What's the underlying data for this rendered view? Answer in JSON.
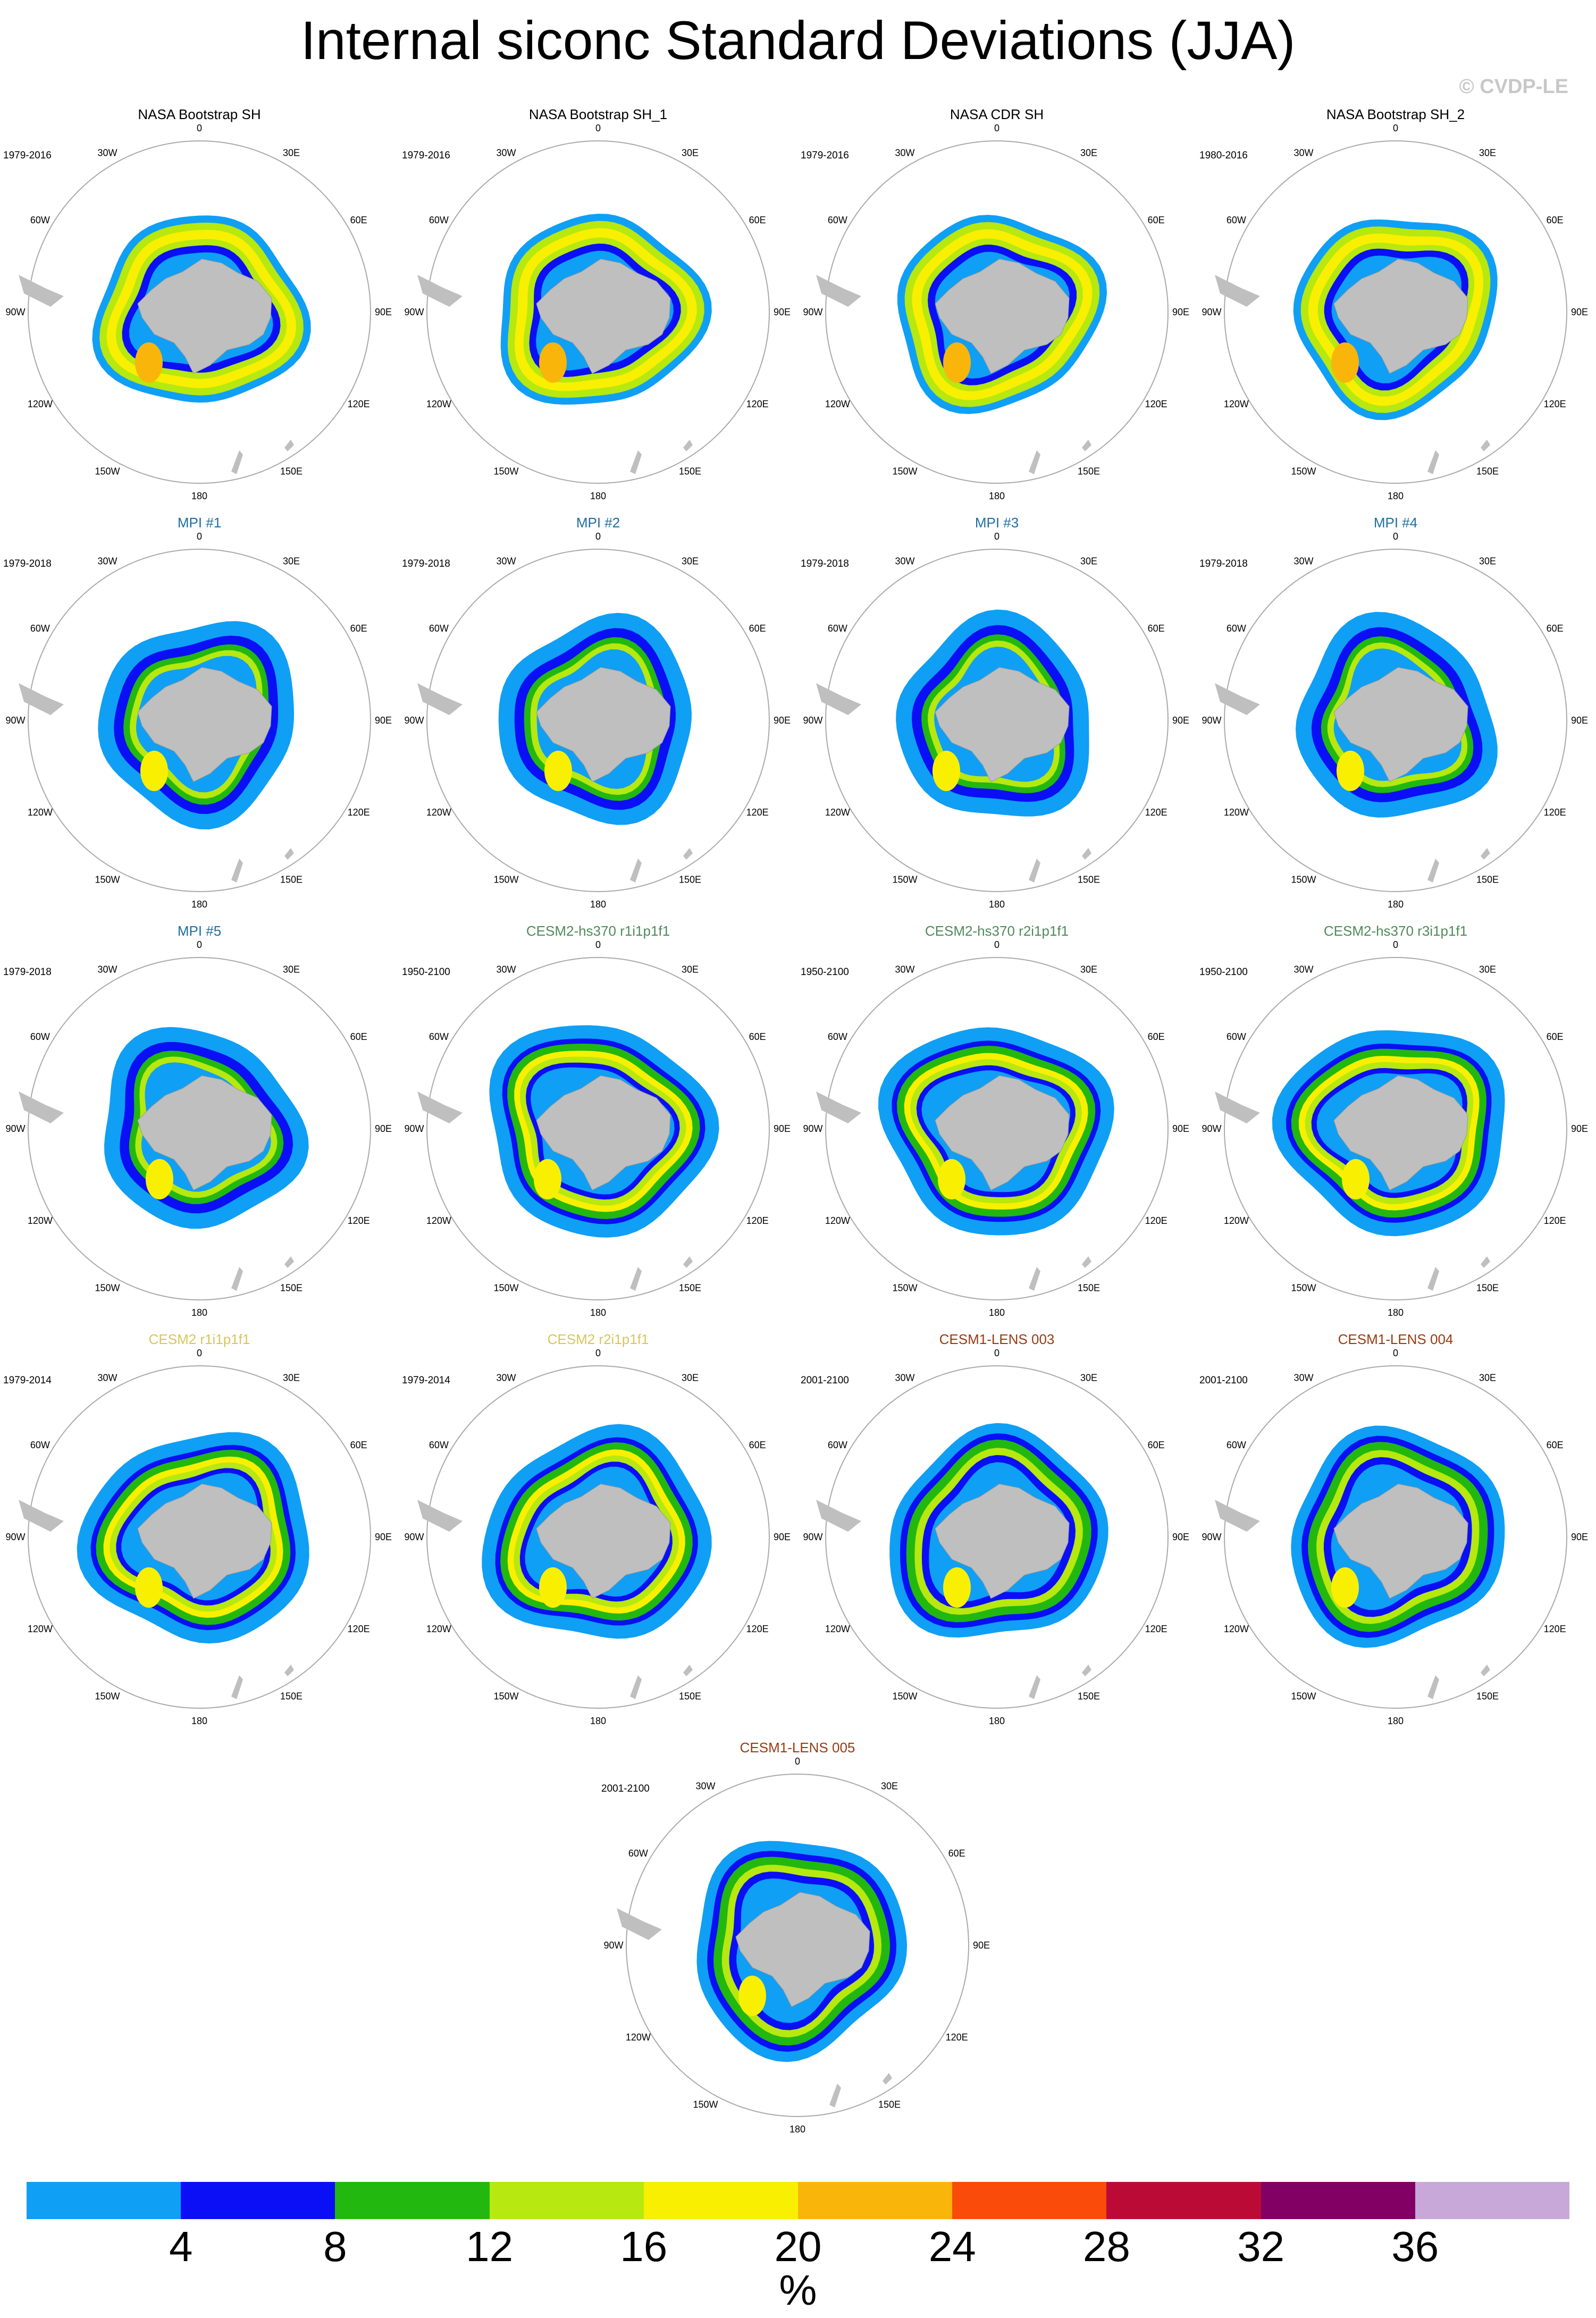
{
  "title": "Internal siconc Standard Deviations (JJA)",
  "credit": "© CVDP-LE",
  "lon_labels": [
    "0",
    "30E",
    "60E",
    "90E",
    "120E",
    "150E",
    "180",
    "150W",
    "120W",
    "90W",
    "60W",
    "30W"
  ],
  "panels": [
    {
      "title": "NASA Bootstrap SH",
      "years": "1979-2016",
      "color": "#000000",
      "kind": "obs"
    },
    {
      "title": "NASA Bootstrap SH_1",
      "years": "1979-2016",
      "color": "#000000",
      "kind": "obs"
    },
    {
      "title": "NASA CDR SH",
      "years": "1979-2016",
      "color": "#000000",
      "kind": "obs"
    },
    {
      "title": "NASA Bootstrap SH_2",
      "years": "1980-2016",
      "color": "#000000",
      "kind": "obs"
    },
    {
      "title": "MPI #1",
      "years": "1979-2018",
      "color": "#1d6fa0",
      "kind": "mpi"
    },
    {
      "title": "MPI #2",
      "years": "1979-2018",
      "color": "#1d6fa0",
      "kind": "mpi"
    },
    {
      "title": "MPI #3",
      "years": "1979-2018",
      "color": "#1d6fa0",
      "kind": "mpi"
    },
    {
      "title": "MPI #4",
      "years": "1979-2018",
      "color": "#1d6fa0",
      "kind": "mpi"
    },
    {
      "title": "MPI #5",
      "years": "1979-2018",
      "color": "#1d6fa0",
      "kind": "mpi"
    },
    {
      "title": "CESM2-hs370 r1i1p1f1",
      "years": "1950-2100",
      "color": "#4f8a5a",
      "kind": "cesm"
    },
    {
      "title": "CESM2-hs370 r2i1p1f1",
      "years": "1950-2100",
      "color": "#4f8a5a",
      "kind": "cesm"
    },
    {
      "title": "CESM2-hs370 r3i1p1f1",
      "years": "1950-2100",
      "color": "#4f8a5a",
      "kind": "cesm"
    },
    {
      "title": "CESM2 r1i1p1f1",
      "years": "1979-2014",
      "color": "#d8c65a",
      "kind": "cesm"
    },
    {
      "title": "CESM2 r2i1p1f1",
      "years": "1979-2014",
      "color": "#d8c65a",
      "kind": "cesm"
    },
    {
      "title": "CESM1-LENS 003",
      "years": "2001-2100",
      "color": "#9a3a12",
      "kind": "lens"
    },
    {
      "title": "CESM1-LENS 004",
      "years": "2001-2100",
      "color": "#9a3a12",
      "kind": "lens"
    },
    {
      "title": "CESM1-LENS 005",
      "years": "2001-2100",
      "color": "#9a3a12",
      "kind": "lens"
    }
  ],
  "colorbar": {
    "colors": [
      "#0f9ff5",
      "#0a0ff5",
      "#22b80f",
      "#b7e80f",
      "#f8f000",
      "#fab50a",
      "#fa4b0a",
      "#bc0a37",
      "#820064",
      "#c8a8d8"
    ],
    "tick_labels": [
      "4",
      "8",
      "12",
      "16",
      "20",
      "24",
      "28",
      "32",
      "36"
    ],
    "unit": "%"
  },
  "colors": {
    "land": "#bfbfbf",
    "ocean": "#ffffff",
    "circle": "#aaaaaa"
  }
}
